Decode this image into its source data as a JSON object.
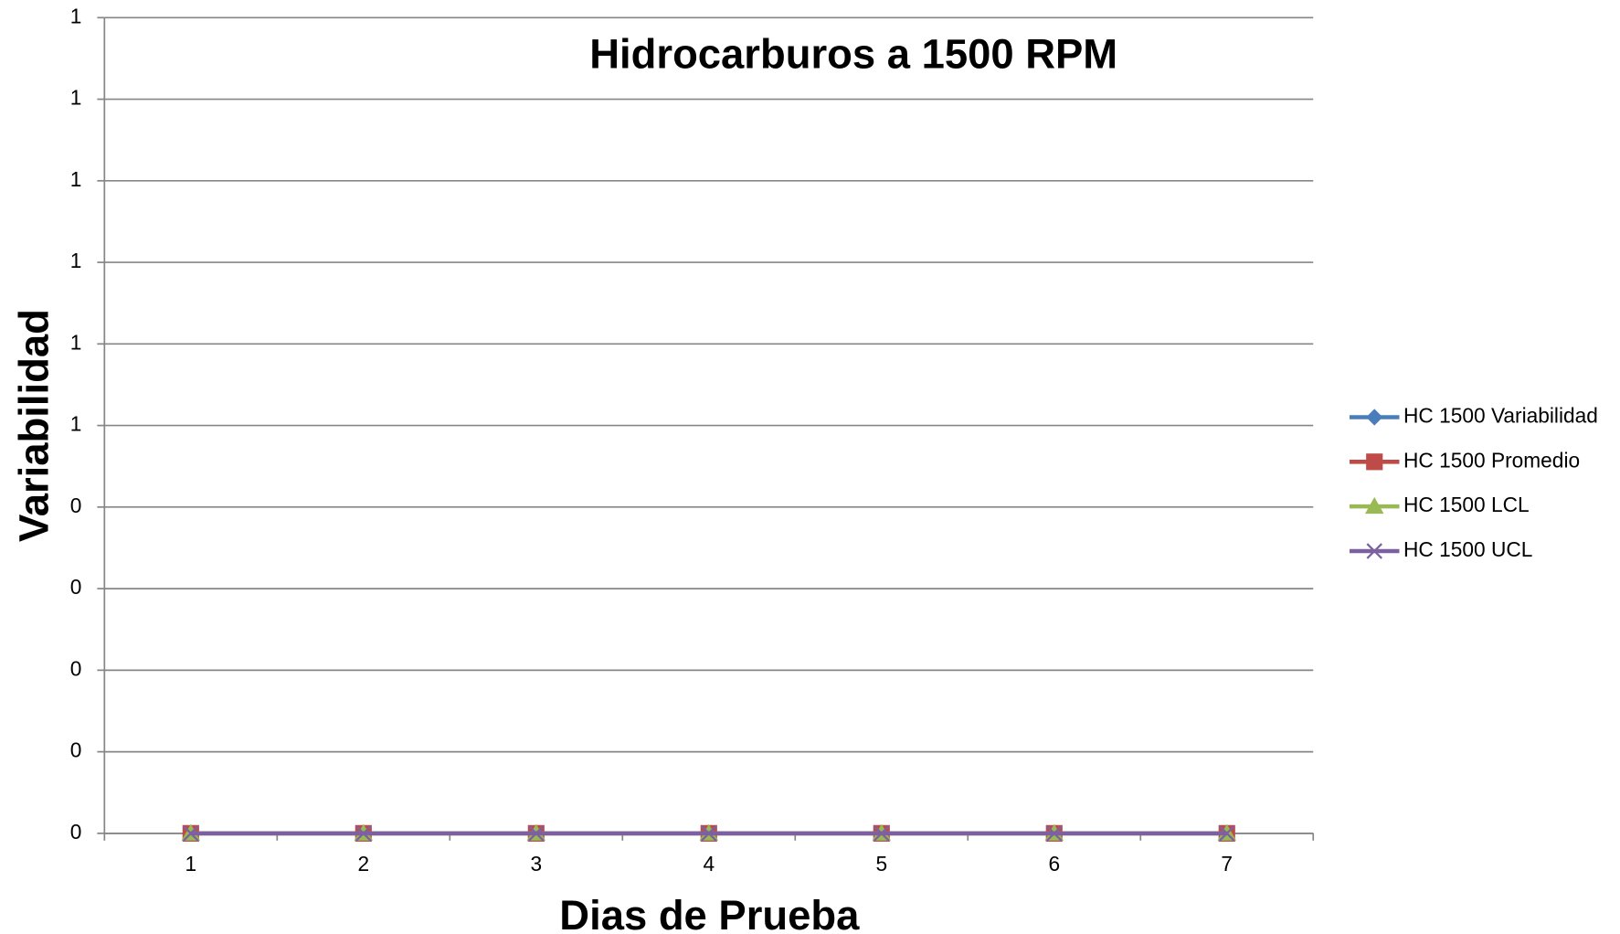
{
  "chart_data": {
    "type": "line",
    "title": "Hidrocarburos a 1500 RPM",
    "x_label": "Dias de Prueba",
    "y_label": "Variabilidad",
    "categories": [
      "1",
      "2",
      "3",
      "4",
      "5",
      "6",
      "7"
    ],
    "series": [
      {
        "name": "HC 1500 Variabilidad",
        "color": "#4a7ebb",
        "marker": "diamond",
        "values": [
          0,
          0,
          0,
          0,
          0,
          0,
          0
        ]
      },
      {
        "name": "HC 1500 Promedio",
        "color": "#be4b48",
        "marker": "square",
        "values": [
          0,
          0,
          0,
          0,
          0,
          0,
          0
        ]
      },
      {
        "name": "HC 1500 LCL",
        "color": "#98b954",
        "marker": "triangle",
        "values": [
          0,
          0,
          0,
          0,
          0,
          0,
          0
        ]
      },
      {
        "name": "HC 1500 UCL",
        "color": "#7d60a0",
        "marker": "x",
        "values": [
          0,
          0,
          0,
          0,
          0,
          0,
          0
        ]
      }
    ],
    "ylim": [
      0,
      1
    ],
    "yticks": [
      0,
      {
        "value": 0.1,
        "label": "0"
      },
      {
        "value": 0.2,
        "label": "0"
      },
      {
        "value": 0.3,
        "label": "0"
      },
      {
        "value": 0.4,
        "label": "0"
      },
      {
        "value": 0.5,
        "label": "1"
      },
      {
        "value": 0.6,
        "label": "1"
      },
      {
        "value": 0.7,
        "label": "1"
      },
      {
        "value": 0.8,
        "label": "1"
      },
      {
        "value": 0.9,
        "label": "1"
      },
      1
    ],
    "grid": true,
    "legend": "right"
  }
}
